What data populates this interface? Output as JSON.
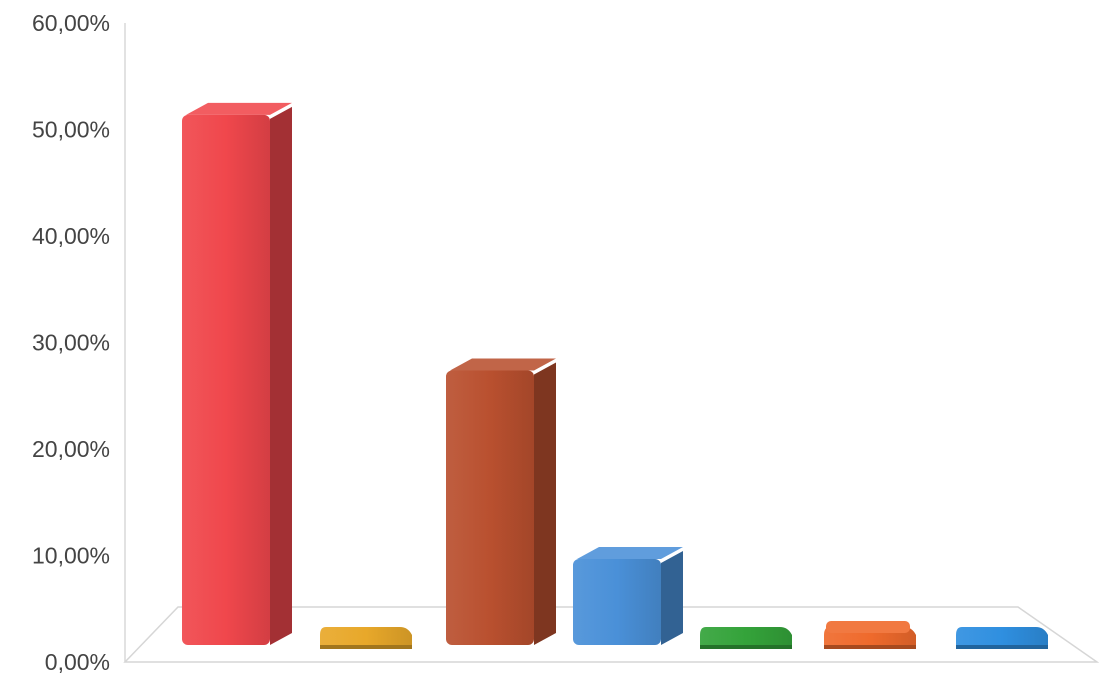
{
  "chart_data": {
    "type": "bar",
    "title": "",
    "xlabel": "",
    "ylabel": "",
    "ylim": [
      0,
      60
    ],
    "y_ticks": [
      0,
      10,
      20,
      30,
      40,
      50,
      60
    ],
    "y_tick_labels": [
      "0,00%",
      "10,00%",
      "20,00%",
      "30,00%",
      "40,00%",
      "50,00%",
      "60,00%"
    ],
    "grid": false,
    "style": "3d-column",
    "values": [
      52.5,
      0.3,
      28.5,
      10.8,
      0.2,
      1.5,
      0.4
    ],
    "colors": [
      "#f0474c",
      "#e8a82a",
      "#b9502f",
      "#4a90d8",
      "#34a33a",
      "#ef6a2c",
      "#2f8fe0"
    ]
  }
}
